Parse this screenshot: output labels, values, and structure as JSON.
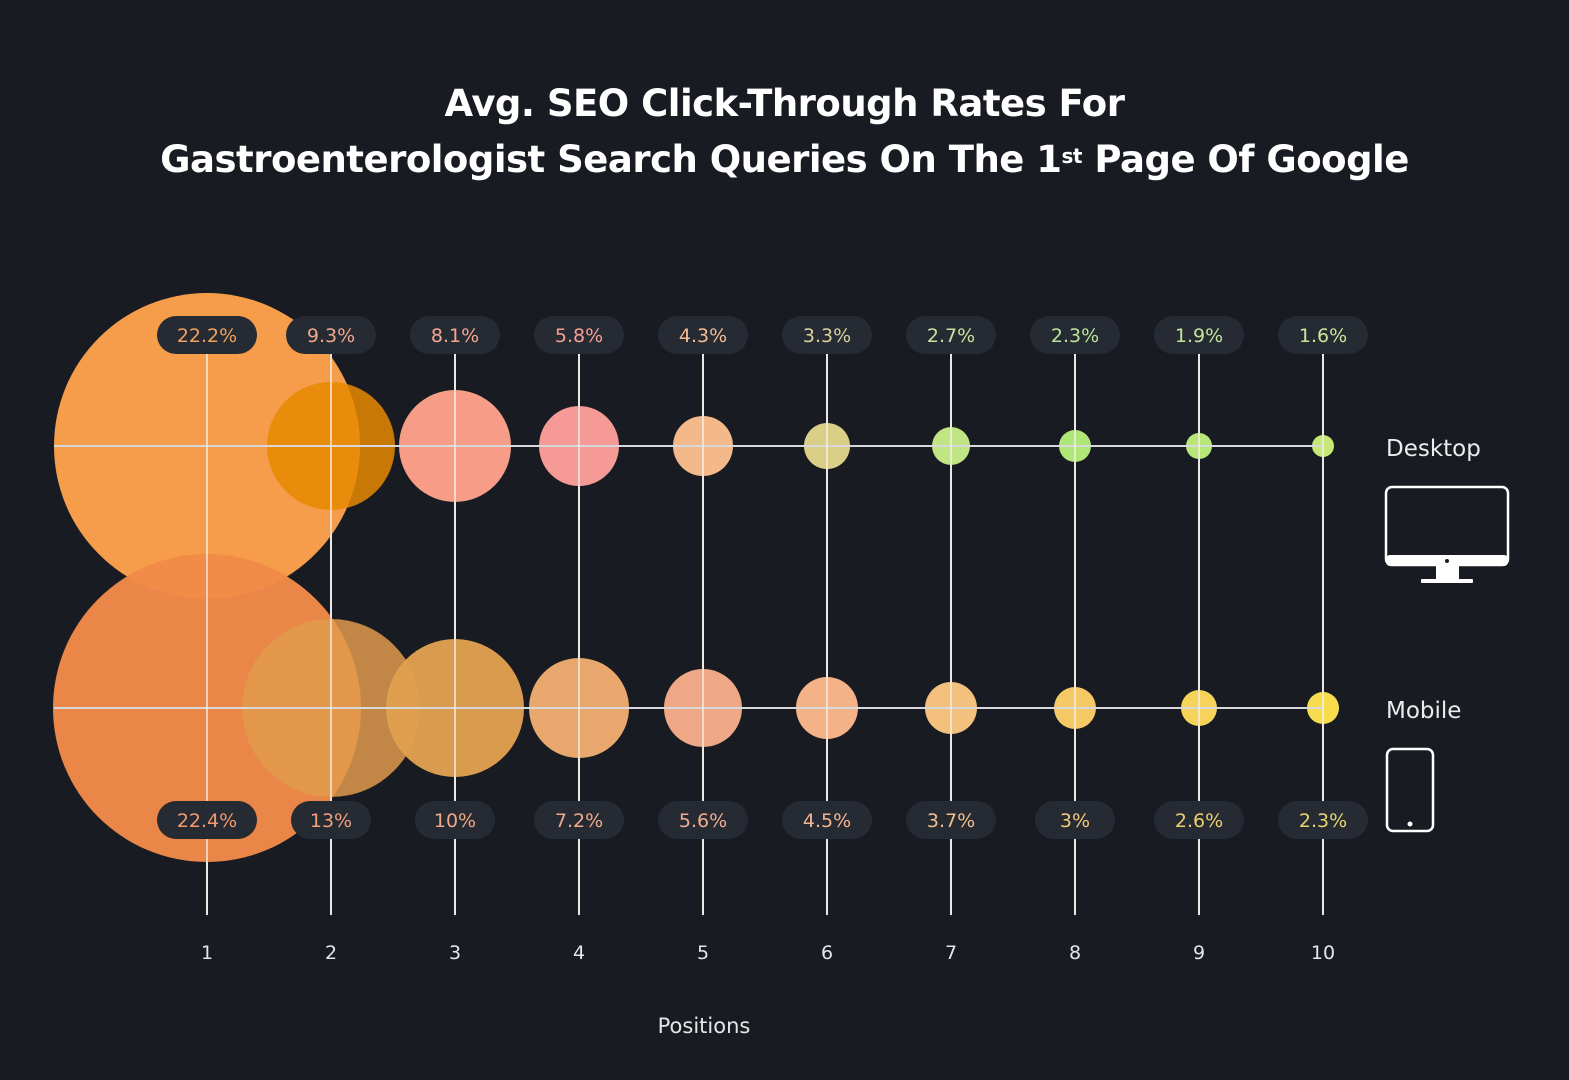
{
  "title": {
    "line1": "Avg. SEO Click-Through Rates For",
    "line2_pre": "Gastroenterologist Search Queries On The 1",
    "line2_sup": "st",
    "line2_post": " Page Of Google"
  },
  "chart_data": {
    "type": "bubble",
    "title": "Avg. SEO Click-Through Rates For Gastroenterologist Search Queries On The 1st Page Of Google",
    "xlabel": "Positions",
    "ylabel": "",
    "categories": [
      "1",
      "2",
      "3",
      "4",
      "5",
      "6",
      "7",
      "8",
      "9",
      "10"
    ],
    "series": [
      {
        "name": "Desktop",
        "values": [
          22.2,
          9.3,
          8.1,
          5.8,
          4.3,
          3.3,
          2.7,
          2.3,
          1.9,
          1.6
        ],
        "labels": [
          "22.2%",
          "9.3%",
          "8.1%",
          "5.8%",
          "4.3%",
          "3.3%",
          "2.7%",
          "2.3%",
          "1.9%",
          "1.6%"
        ],
        "colors": [
          "#fda24c",
          "#e88a00",
          "#fea18a",
          "#fd9f9a",
          "#fbbf8e",
          "#e2d68a",
          "#c7ec86",
          "#b5f07a",
          "#bdf07a",
          "#ccf07a"
        ],
        "label_colors": [
          "#f0a35e",
          "#f0a88a",
          "#f4a78f",
          "#f4a093",
          "#f2bb93",
          "#d9d29a",
          "#c8e2a0",
          "#b9e69a",
          "#c0e69a",
          "#c9e69a"
        ],
        "icon": "desktop-monitor-icon"
      },
      {
        "name": "Mobile",
        "values": [
          22.4,
          13,
          10,
          7.2,
          5.6,
          4.5,
          3.7,
          3,
          2.6,
          2.3
        ],
        "labels": [
          "22.4%",
          "13%",
          "10%",
          "7.2%",
          "5.6%",
          "4.5%",
          "3.7%",
          "3%",
          "2.6%",
          "2.3%"
        ],
        "colors": [
          "#f28a48",
          "#e09a4c",
          "#e0a050",
          "#eeac70",
          "#f7ad88",
          "#fbb88a",
          "#fcc680",
          "#fdd168",
          "#fedb5e",
          "#ffe34e"
        ],
        "label_colors": [
          "#f29a6a",
          "#f0a07a",
          "#eea888",
          "#eeaa8a",
          "#f0ad90",
          "#f2b493",
          "#f2bf8e",
          "#f2c878",
          "#eccf6e",
          "#e8d570"
        ],
        "icon": "mobile-phone-icon"
      }
    ],
    "legend": [
      "Desktop",
      "Mobile"
    ],
    "legend_position": "right",
    "grid": true,
    "size_encoding": "bubble radius proportional to CTR"
  },
  "axis": {
    "label": "Positions",
    "ticks": [
      "1",
      "2",
      "3",
      "4",
      "5",
      "6",
      "7",
      "8",
      "9",
      "10"
    ]
  },
  "legend": {
    "desktop": "Desktop",
    "mobile": "Mobile"
  },
  "colors": {
    "background": "#181b22",
    "pill_bg": "#262a33",
    "grid_line": "#d8d8dc",
    "text": "#ececec"
  }
}
